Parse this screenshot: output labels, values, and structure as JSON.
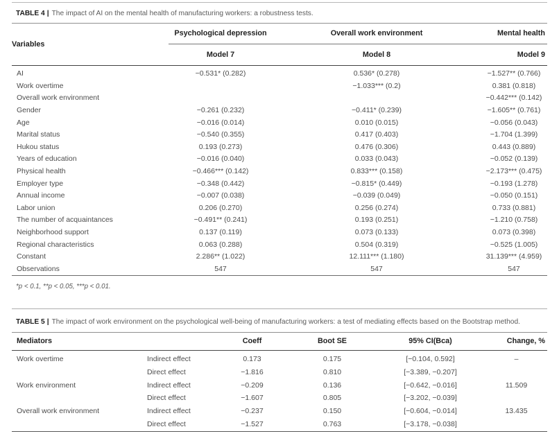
{
  "colors": {
    "background": "#ffffff",
    "body_text": "#4c4c4c",
    "heading_text": "#1f1f1f",
    "rule_dark": "#3f3f3f",
    "rule_light": "#adadad"
  },
  "table4": {
    "caption_label": "TABLE 4",
    "caption_bar": "|",
    "caption_text": "The impact of AI on the mental health of manufacturing workers: a robustness tests.",
    "headers": {
      "variables": "Variables",
      "group1": "Psychological depression",
      "group2": "Overall work environment",
      "group3": "Mental health",
      "model7": "Model 7",
      "model8": "Model 8",
      "model9": "Model 9"
    },
    "rows": [
      [
        "AI",
        "−0.531* (0.282)",
        "0.536* (0.278)",
        "−1.527** (0.766)"
      ],
      [
        "Work overtime",
        "",
        "−1.033*** (0.2)",
        "0.381 (0.818)"
      ],
      [
        "Overall work environment",
        "",
        "",
        "−0.442*** (0.142)"
      ],
      [
        "Gender",
        "−0.261 (0.232)",
        "−0.411* (0.239)",
        "−1.605** (0.761)"
      ],
      [
        "Age",
        "−0.016 (0.014)",
        "0.010 (0.015)",
        "−0.056 (0.043)"
      ],
      [
        "Marital status",
        "−0.540 (0.355)",
        "0.417 (0.403)",
        "−1.704 (1.399)"
      ],
      [
        "Hukou status",
        "0.193 (0.273)",
        "0.476 (0.306)",
        "0.443 (0.889)"
      ],
      [
        "Years of education",
        "−0.016 (0.040)",
        "0.033 (0.043)",
        "−0.052 (0.139)"
      ],
      [
        "Physical health",
        "−0.466*** (0.142)",
        "0.833*** (0.158)",
        "−2.173*** (0.475)"
      ],
      [
        "Employer type",
        "−0.348 (0.442)",
        "−0.815* (0.449)",
        "−0.193 (1.278)"
      ],
      [
        "Annual income",
        "−0.007 (0.038)",
        "−0.039 (0.049)",
        "−0.050 (0.151)"
      ],
      [
        "Labor union",
        "0.206 (0.270)",
        "0.256 (0.274)",
        "0.733 (0.881)"
      ],
      [
        "The number of acquaintances",
        "−0.491** (0.241)",
        "0.193 (0.251)",
        "−1.210 (0.758)"
      ],
      [
        "Neighborhood support",
        "0.137 (0.119)",
        "0.073 (0.133)",
        "0.073 (0.398)"
      ],
      [
        "Regional characteristics",
        "0.063 (0.288)",
        "0.504 (0.319)",
        "−0.525 (1.005)"
      ],
      [
        "Constant",
        "2.286** (1.022)",
        "12.111*** (1.180)",
        "31.139*** (4.959)"
      ],
      [
        "Observations",
        "547",
        "547",
        "547"
      ]
    ],
    "footnote": "*p < 0.1, **p < 0.05, ***p < 0.01."
  },
  "table5": {
    "caption_label": "TABLE 5",
    "caption_bar": "|",
    "caption_text": "The impact of work environment on the psychological well-being of manufacturing workers: a test of mediating effects based on the Bootstrap method.",
    "headers": [
      "Mediators",
      "",
      "Coeff",
      "Boot SE",
      "95% CI(Bca)",
      "Change, %"
    ],
    "rows": [
      [
        "Work overtime",
        "Indirect effect",
        "0.173",
        "0.175",
        "[−0.104, 0.592]",
        "–"
      ],
      [
        "",
        "Direct effect",
        "−1.816",
        "0.810",
        "[−3.389, −0.207]",
        ""
      ],
      [
        "Work environment",
        "Indirect effect",
        "−0.209",
        "0.136",
        "[−0.642, −0.016]",
        "11.509"
      ],
      [
        "",
        "Direct effect",
        "−1.607",
        "0.805",
        "[−3.202, −0.039]",
        ""
      ],
      [
        "Overall work environment",
        "Indirect effect",
        "−0.237",
        "0.150",
        "[−0.604, −0.014]",
        "13.435"
      ],
      [
        "",
        "Direct effect",
        "−1.527",
        "0.763",
        "[−3.178, −0.038]",
        ""
      ]
    ]
  }
}
